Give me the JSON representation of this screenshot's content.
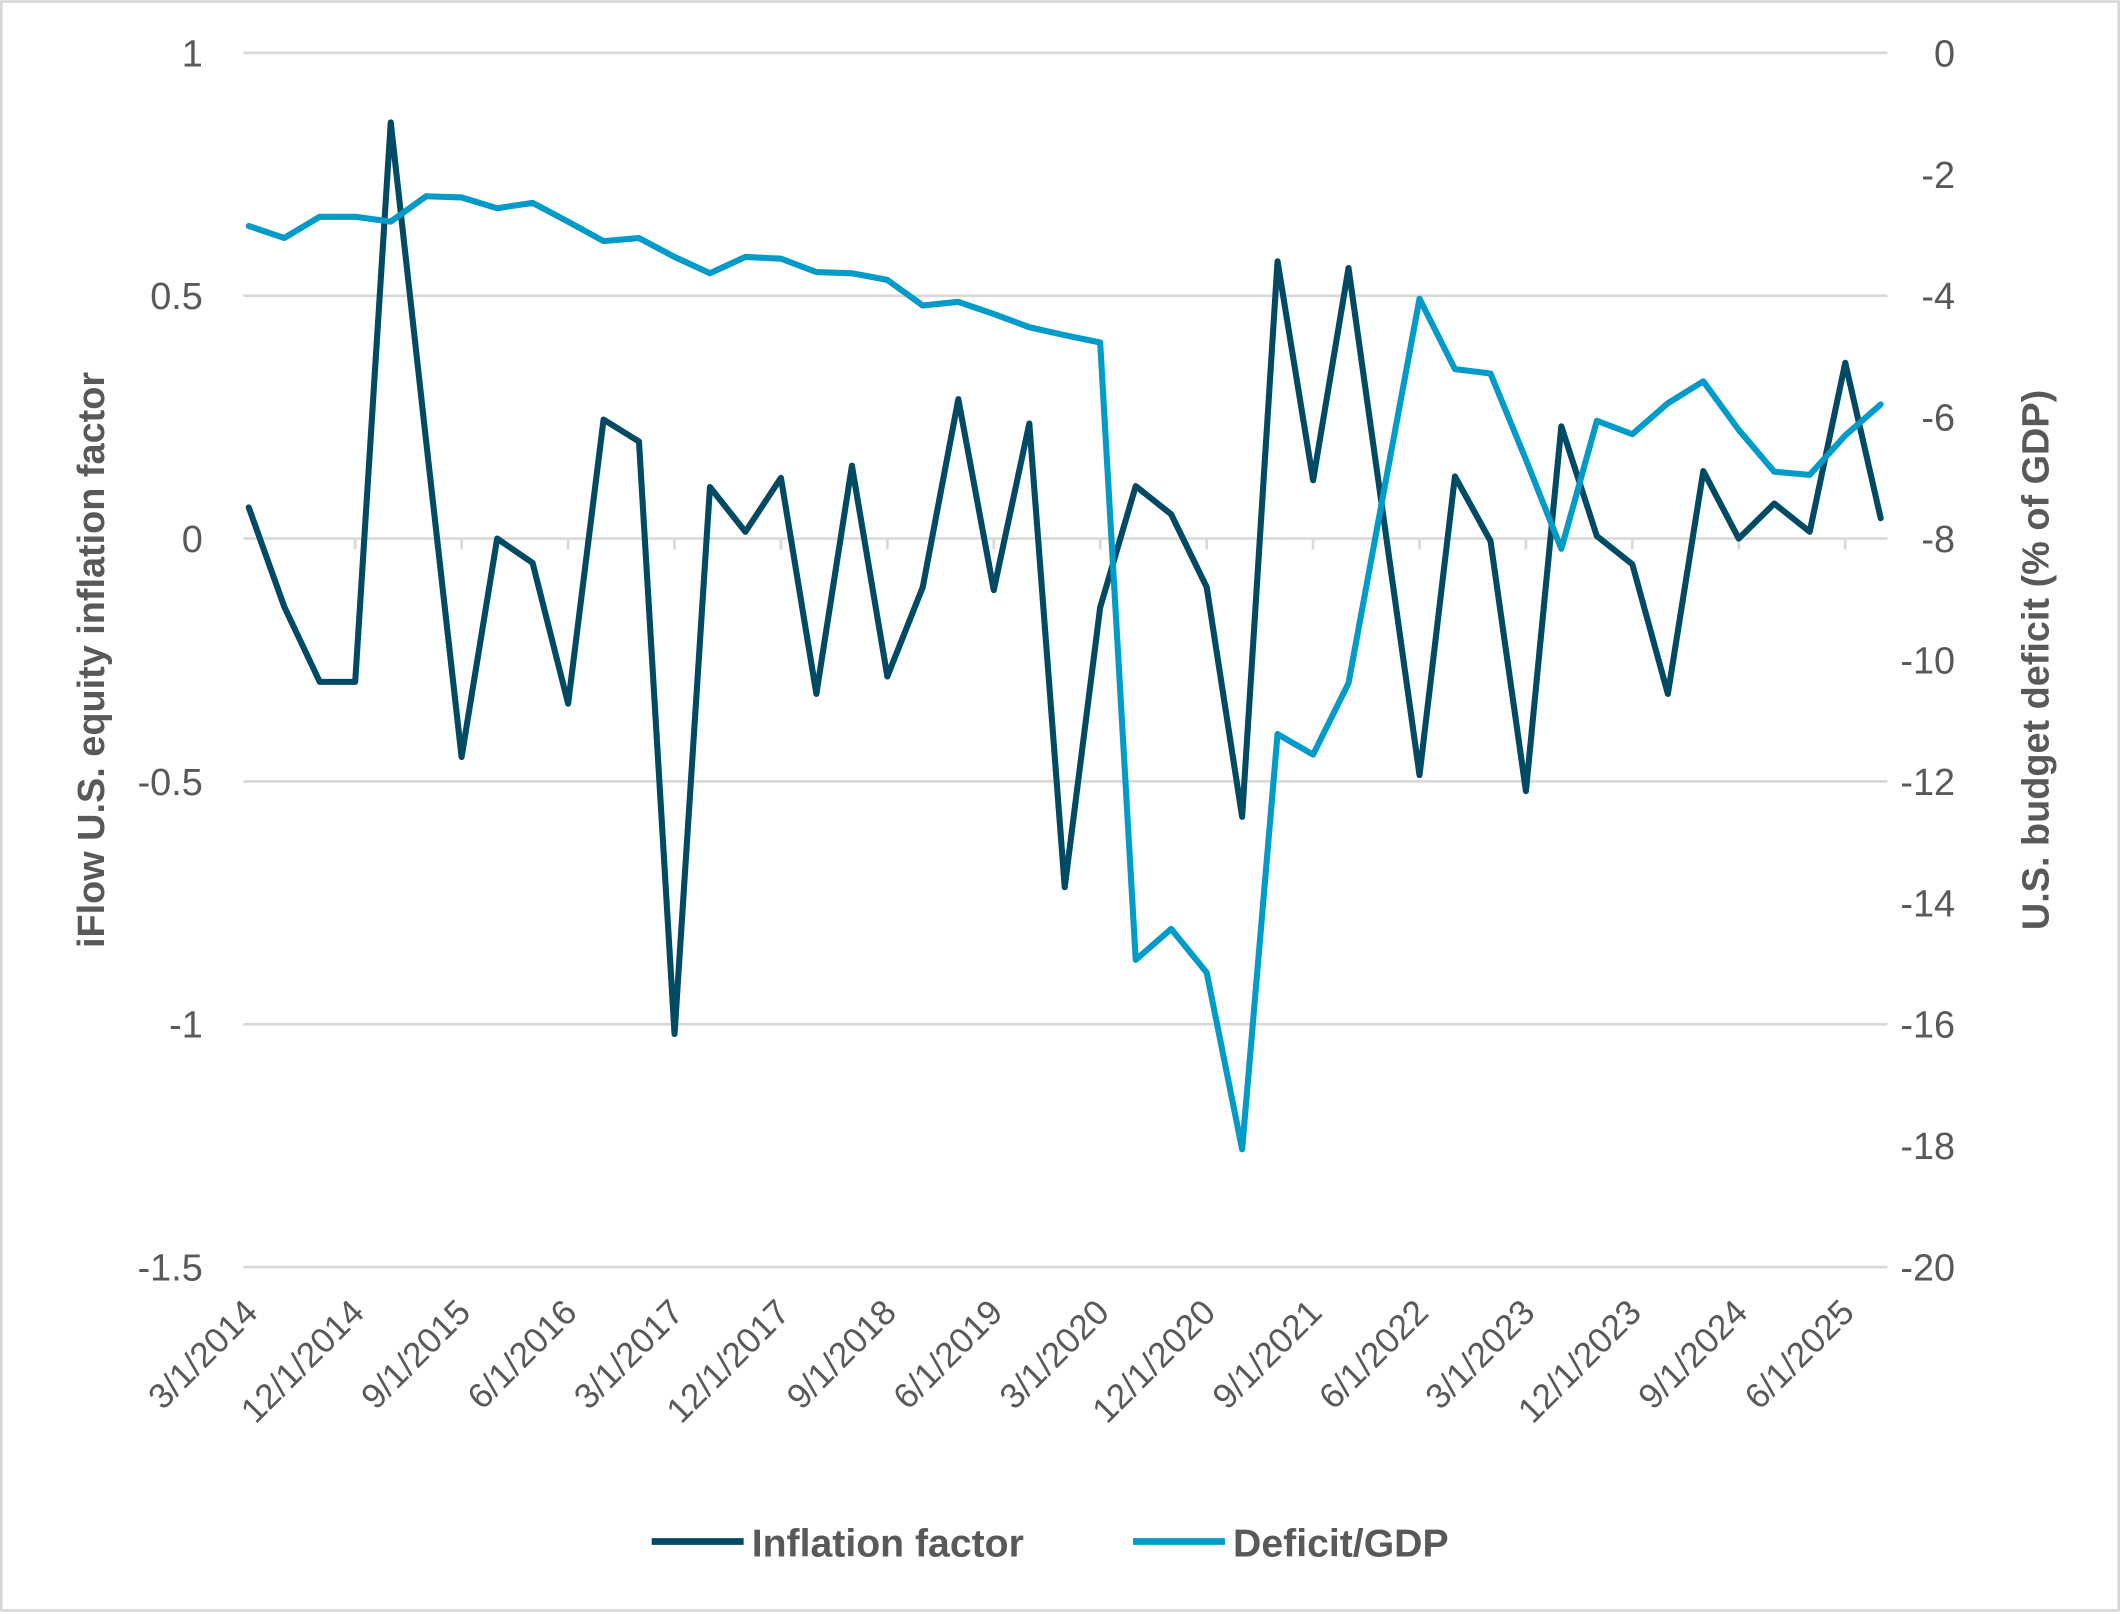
{
  "chart_data": {
    "type": "line",
    "title": "",
    "xlabel": "",
    "ylabel_left": "iFlow U.S. equity inflation factor",
    "ylabel_right": "U.S. budget deficit (% of GDP)",
    "ylim_left": [
      -1.5,
      1
    ],
    "yticks_left": [
      "1",
      "0.5",
      "0",
      "-0.5",
      "-1",
      "-1.5"
    ],
    "ylim_right": [
      -20,
      0
    ],
    "yticks_right": [
      "0",
      "-2",
      "-4",
      "-6",
      "-8",
      "-10",
      "-12",
      "-14",
      "-16",
      "-18",
      "-20"
    ],
    "grid": true,
    "legend_position": "bottom",
    "x": [
      "3/1/2014",
      "6/1/2014",
      "9/1/2014",
      "12/1/2014",
      "3/1/2015",
      "6/1/2015",
      "9/1/2015",
      "12/1/2015",
      "3/1/2016",
      "6/1/2016",
      "9/1/2016",
      "12/1/2016",
      "3/1/2017",
      "6/1/2017",
      "9/1/2017",
      "12/1/2017",
      "3/1/2018",
      "6/1/2018",
      "9/1/2018",
      "12/1/2018",
      "3/1/2019",
      "6/1/2019",
      "9/1/2019",
      "12/1/2019",
      "3/1/2020",
      "6/1/2020",
      "9/1/2020",
      "12/1/2020",
      "3/1/2021",
      "6/1/2021",
      "9/1/2021",
      "12/1/2021",
      "3/1/2022",
      "6/1/2022",
      "9/1/2022",
      "12/1/2022",
      "3/1/2023",
      "6/1/2023",
      "9/1/2023",
      "12/1/2023",
      "3/1/2024",
      "6/1/2024",
      "9/1/2024",
      "12/1/2024",
      "3/1/2025",
      "6/1/2025",
      "9/1/2025"
    ],
    "x_tick_labels": [
      "3/1/2014",
      "12/1/2014",
      "9/1/2015",
      "6/1/2016",
      "3/1/2017",
      "12/1/2017",
      "9/1/2018",
      "6/1/2019",
      "3/1/2020",
      "12/1/2020",
      "9/1/2021",
      "6/1/2022",
      "3/1/2023",
      "12/1/2023",
      "9/1/2024",
      "6/1/2025"
    ],
    "series": [
      {
        "name": "Inflation factor",
        "axis": "left",
        "color": "#004A63",
        "values": [
          0.064,
          -0.14,
          -0.295,
          -0.295,
          0.857,
          0.2,
          -0.45,
          0,
          -0.05,
          -0.34,
          0.245,
          0.2,
          -1.02,
          0.106,
          0.014,
          0.125,
          -0.32,
          0.15,
          -0.284,
          -0.1,
          0.287,
          -0.106,
          0.237,
          -0.718,
          -0.142,
          0.108,
          0.05,
          -0.1,
          -0.573,
          0.571,
          0.12,
          0.557,
          0.035,
          -0.487,
          0.128,
          -0.005,
          -0.52,
          0.231,
          0.005,
          -0.053,
          -0.32,
          0.139,
          0,
          0.072,
          0.014,
          0.362,
          0.042
        ]
      },
      {
        "name": "Deficit/GDP",
        "axis": "right",
        "color": "#009BC9",
        "values": [
          -2.85,
          -3.05,
          -2.7,
          -2.7,
          -2.78,
          -2.36,
          -2.38,
          -2.56,
          -2.47,
          -2.78,
          -3.1,
          -3.05,
          -3.36,
          -3.63,
          -3.36,
          -3.39,
          -3.61,
          -3.63,
          -3.74,
          -4.16,
          -4.1,
          -4.3,
          -4.52,
          -4.65,
          -4.77,
          -14.94,
          -14.43,
          -15.15,
          -18.06,
          -11.22,
          -11.56,
          -10.38,
          -7.2,
          -4.05,
          -5.21,
          -5.28,
          -6.7,
          -8.17,
          -6.06,
          -6.28,
          -5.77,
          -5.41,
          -6.21,
          -6.9,
          -6.95,
          -6.3,
          -5.79
        ]
      }
    ]
  }
}
